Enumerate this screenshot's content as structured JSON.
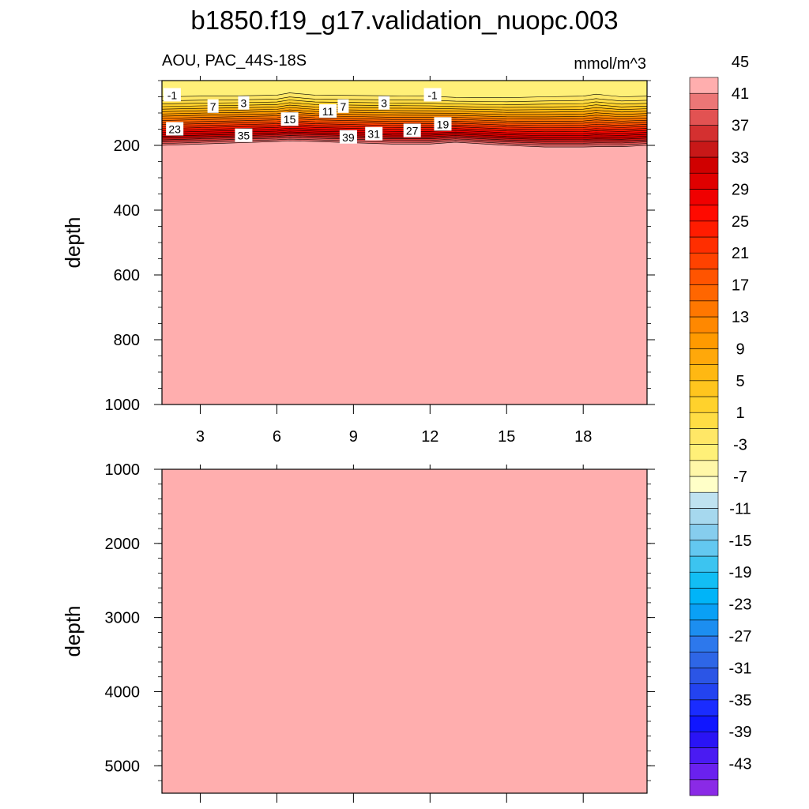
{
  "figure": {
    "title": "b1850.f19_g17.validation_nuopc.003",
    "left_label": "AOU, PAC_44S-18S",
    "right_label": "mmol/m^3"
  },
  "chart_data": [
    {
      "type": "heatmap",
      "panel": "upper",
      "title": "AOU, PAC_44S-18S",
      "units": "mmol/m^3",
      "xlabel": "",
      "ylabel": "depth",
      "xlim": [
        1.5,
        20.5
      ],
      "ylim": [
        1000,
        0
      ],
      "x_ticks": [
        "3",
        "6",
        "9",
        "12",
        "15",
        "18"
      ],
      "y_ticks": [
        "200",
        "400",
        "600",
        "800",
        "1000"
      ],
      "x": [
        1.5,
        3,
        4.5,
        6,
        6.5,
        7.5,
        9,
        10.5,
        12,
        13,
        15,
        16.5,
        18,
        18.5,
        19.5,
        20.5
      ],
      "negative_layer_bottom_depth": [
        50,
        48,
        47,
        45,
        38,
        45,
        46,
        47,
        48,
        52,
        53,
        50,
        48,
        42,
        50,
        48
      ],
      "saturation_depth_max_value": [
        200,
        196,
        192,
        188,
        186,
        188,
        192,
        196,
        196,
        190,
        200,
        205,
        205,
        204,
        204,
        200
      ],
      "fill_value_below": 45,
      "contour_labels": [
        {
          "text": "-1",
          "x": 1.9,
          "depth": 45
        },
        {
          "text": "7",
          "x": 3.5,
          "depth": 80
        },
        {
          "text": "3",
          "x": 4.7,
          "depth": 70
        },
        {
          "text": "23",
          "x": 2.0,
          "depth": 150
        },
        {
          "text": "35",
          "x": 4.7,
          "depth": 170
        },
        {
          "text": "15",
          "x": 6.5,
          "depth": 120
        },
        {
          "text": "11",
          "x": 8.0,
          "depth": 95
        },
        {
          "text": "7",
          "x": 8.6,
          "depth": 80
        },
        {
          "text": "39",
          "x": 8.8,
          "depth": 175
        },
        {
          "text": "31",
          "x": 9.8,
          "depth": 165
        },
        {
          "text": "3",
          "x": 10.2,
          "depth": 70
        },
        {
          "text": "27",
          "x": 11.3,
          "depth": 155
        },
        {
          "text": "-1",
          "x": 12.1,
          "depth": 45
        },
        {
          "text": "19",
          "x": 12.5,
          "depth": 135
        }
      ]
    },
    {
      "type": "heatmap",
      "panel": "lower",
      "xlabel": "",
      "ylabel": "depth",
      "xlim": [
        1.5,
        20.5
      ],
      "ylim": [
        5370,
        1000
      ],
      "x_ticks": [],
      "y_ticks": [
        "1000",
        "2000",
        "3000",
        "4000",
        "5000"
      ],
      "uniform_value": 45
    }
  ],
  "colorbar": {
    "labels": [
      "45",
      "41",
      "37",
      "33",
      "29",
      "25",
      "21",
      "17",
      "13",
      "9",
      "5",
      "1",
      "-3",
      "-7",
      "-11",
      "-15",
      "-19",
      "-23",
      "-27",
      "-31",
      "-35",
      "-39",
      "-43"
    ],
    "levels_min": -45,
    "levels_step": 2,
    "colors": [
      "#8a2ae6",
      "#6a21ee",
      "#4a1bf2",
      "#2a14f5",
      "#1016ff",
      "#1a2cff",
      "#2343f0",
      "#2b55e6",
      "#2e66e6",
      "#2d78ec",
      "#1c8ef0",
      "#0aa0f5",
      "#00b4f8",
      "#12bef4",
      "#3cc4f0",
      "#63c8f0",
      "#86cdee",
      "#a6d8ee",
      "#bfe2f0",
      "#ffffc8",
      "#fff7a8",
      "#fff078",
      "#ffe766",
      "#ffdd44",
      "#ffd22c",
      "#ffc51e",
      "#ffb812",
      "#ffa80a",
      "#ff9a00",
      "#ff8800",
      "#ff7700",
      "#ff6600",
      "#ff5400",
      "#ff4200",
      "#ff2e00",
      "#ff1c00",
      "#ff0a00",
      "#f00000",
      "#e00000",
      "#d00000",
      "#c81818",
      "#d43030",
      "#e25252",
      "#ec7676",
      "#ffaeae"
    ]
  }
}
